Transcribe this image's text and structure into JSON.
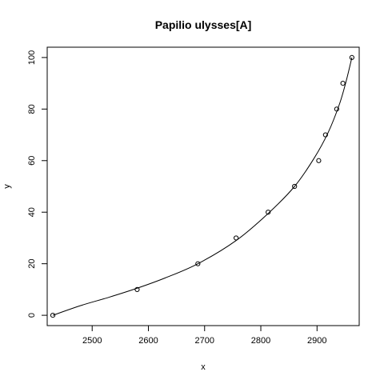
{
  "chart_data": {
    "type": "scatter",
    "title": "Papilio ulysses[A]",
    "xlabel": "x",
    "ylabel": "y",
    "xlim": [
      2420,
      2975
    ],
    "ylim": [
      -4,
      104
    ],
    "grid": false,
    "x_ticks": [
      2500,
      2600,
      2700,
      2800,
      2900
    ],
    "x_tick_labels": [
      "2500",
      "2600",
      "2700",
      "2800",
      "2900"
    ],
    "y_ticks": [
      0,
      20,
      40,
      60,
      80,
      100
    ],
    "y_tick_labels": [
      "0",
      "20",
      "40",
      "60",
      "80",
      "100"
    ],
    "points": {
      "x": [
        2430,
        2580,
        2688,
        2756,
        2813,
        2860,
        2903,
        2915,
        2935,
        2946,
        2962
      ],
      "y": [
        0,
        10,
        20,
        30,
        40,
        50,
        60,
        70,
        80,
        90,
        100
      ]
    },
    "fit_curve": {
      "x": [
        2430,
        2480,
        2530,
        2580,
        2630,
        2688,
        2756,
        2813,
        2860,
        2895,
        2920,
        2940,
        2952,
        2962
      ],
      "y": [
        0,
        3.8,
        7,
        10.5,
        14.5,
        20,
        29,
        39.5,
        50,
        61,
        71,
        82,
        91,
        100
      ]
    }
  }
}
